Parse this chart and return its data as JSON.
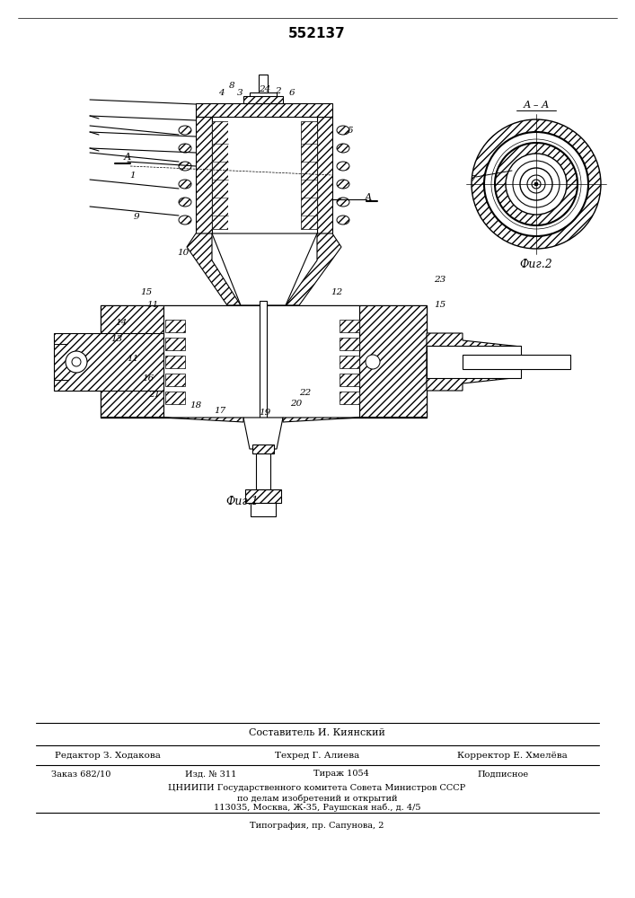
{
  "patent_number": "552137",
  "bg_color": "#ffffff",
  "fig_width": 7.07,
  "fig_height": 10.0,
  "dpi": 100,
  "footer": {
    "composer": "Составитель И. Киянский",
    "editor": "Редактор З. Ходакова",
    "techred": "Техред Г. Алиева",
    "corrector": "Корректор Е. Хмелёва",
    "order": "Заказ 682/10",
    "edition": "Изд. № 311",
    "circulation": "Тираж 1054",
    "signed": "Подписное",
    "org_line1": "ЦНИИПИ Государственного комитета Совета Министров СССР",
    "org_line2": "по делам изобретений и открытий",
    "org_line3": "113035, Москва, Ж-35, Раушская наб., д. 4/5",
    "print_line": "Типография, пр. Сапунова, 2"
  }
}
